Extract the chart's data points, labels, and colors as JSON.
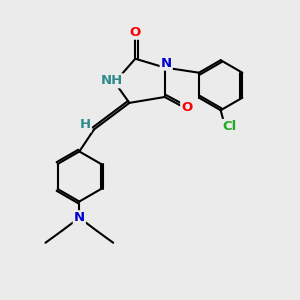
{
  "bg_color": "#ebebeb",
  "bond_color": "#000000",
  "atom_colors": {
    "O": "#ff0000",
    "N": "#0000cc",
    "H": "#2e8b8b",
    "Cl": "#22aa22",
    "C": "#000000"
  },
  "font_size": 9.5,
  "fig_size": [
    3.0,
    3.0
  ],
  "dpi": 100
}
